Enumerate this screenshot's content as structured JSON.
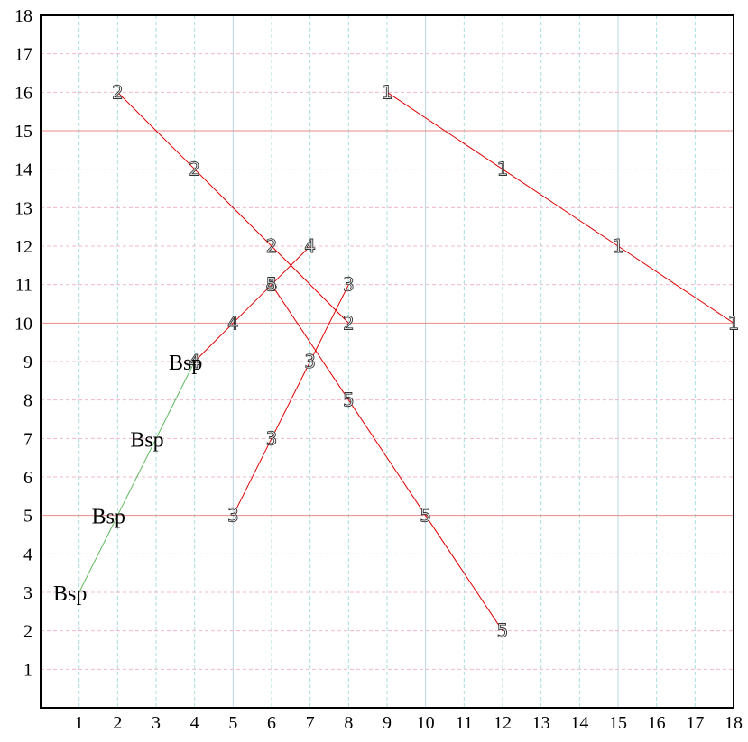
{
  "chart_data": {
    "type": "line",
    "title": "",
    "xlabel": "",
    "ylabel": "",
    "xlim": [
      0,
      18
    ],
    "ylim": [
      0,
      18
    ],
    "x_ticks": [
      "1",
      "2",
      "3",
      "4",
      "5",
      "6",
      "7",
      "8",
      "9",
      "10",
      "11",
      "12",
      "13",
      "14",
      "15",
      "16",
      "17",
      "18"
    ],
    "y_ticks": [
      "1",
      "2",
      "3",
      "4",
      "5",
      "6",
      "7",
      "8",
      "9",
      "10",
      "11",
      "12",
      "13",
      "14",
      "15",
      "16",
      "17",
      "18"
    ],
    "grid": {
      "minor_vertical": {
        "at": [
          1,
          2,
          3,
          4,
          6,
          7,
          8,
          9,
          11,
          12,
          13,
          14,
          16,
          17
        ],
        "style": "dashed",
        "color": "#a8dede"
      },
      "major_vertical": {
        "at": [
          5,
          10,
          15
        ],
        "style": "solid",
        "color": "#b8d4e6"
      },
      "minor_horizontal": {
        "at": [
          1,
          2,
          3,
          4,
          6,
          7,
          8,
          9,
          11,
          12,
          13,
          14,
          16,
          17
        ],
        "style": "dashed",
        "color": "#f0b8c8"
      },
      "major_horizontal": {
        "at": [
          5,
          10,
          15
        ],
        "style": "solid",
        "color": "#e88a8a"
      }
    },
    "series": [
      {
        "label": "1",
        "color": "#e00000",
        "points": [
          [
            9,
            16
          ],
          [
            12,
            14
          ],
          [
            15,
            12
          ],
          [
            18,
            10
          ]
        ]
      },
      {
        "label": "2",
        "color": "#e00000",
        "points": [
          [
            2,
            16
          ],
          [
            4,
            14
          ],
          [
            6,
            12
          ],
          [
            8,
            10
          ]
        ]
      },
      {
        "label": "3",
        "color": "#e00000",
        "points": [
          [
            5,
            5
          ],
          [
            6,
            7
          ],
          [
            7,
            9
          ],
          [
            8,
            11
          ]
        ]
      },
      {
        "label": "4",
        "color": "#e00000",
        "points": [
          [
            4,
            9
          ],
          [
            5,
            10
          ],
          [
            6,
            11
          ],
          [
            7,
            12
          ]
        ]
      },
      {
        "label": "5",
        "color": "#e00000",
        "points": [
          [
            6,
            11
          ],
          [
            8,
            8
          ],
          [
            10,
            5
          ],
          [
            12,
            2
          ]
        ]
      },
      {
        "label": "Bsp",
        "color": "#5cb85c",
        "points": [
          [
            1,
            3
          ],
          [
            2,
            5
          ],
          [
            3,
            7
          ],
          [
            4,
            9
          ]
        ]
      }
    ]
  }
}
